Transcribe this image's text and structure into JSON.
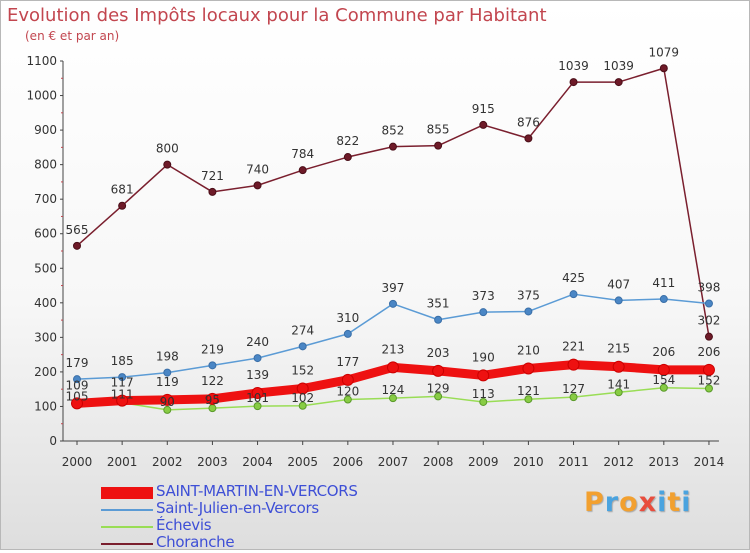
{
  "title": "Evolution des Impôts locaux pour la Commune par Habitant",
  "subtitle": "(en € et par an)",
  "logo": {
    "letters": [
      "P",
      "r",
      "o",
      "x",
      "i",
      "t",
      "i"
    ],
    "colors": [
      "#f2a02f",
      "#4aa3df",
      "#f2a02f",
      "#e84d3d",
      "#4aa3df",
      "#f2a02f",
      "#4aa3df"
    ]
  },
  "chart_data": {
    "type": "line",
    "x": [
      "2000",
      "2001",
      "2002",
      "2003",
      "2004",
      "2005",
      "2006",
      "2007",
      "2008",
      "2009",
      "2010",
      "2011",
      "2012",
      "2013",
      "2014"
    ],
    "ylim": [
      0,
      1100
    ],
    "yticks": [
      "0",
      "100",
      "200",
      "300",
      "400",
      "500",
      "600",
      "700",
      "800",
      "900",
      "1000",
      "1100"
    ],
    "grid": false,
    "legend_position": "bottom-left",
    "series": [
      {
        "name": "SAINT-MARTIN-EN-VERCORS",
        "color": "#ee1111",
        "values": [
          109,
          117,
          119,
          122,
          139,
          152,
          177,
          213,
          203,
          190,
          210,
          221,
          215,
          206,
          206
        ],
        "labels": [
          "109",
          "117",
          "119",
          "122",
          "139",
          "152",
          "177",
          "213",
          "203",
          "190",
          "210",
          "221",
          "215",
          "206",
          "206"
        ]
      },
      {
        "name": "Saint-Julien-en-Vercors",
        "color": "#5b9bd5",
        "values": [
          179,
          185,
          198,
          219,
          240,
          274,
          310,
          397,
          351,
          373,
          375,
          425,
          407,
          411,
          398
        ],
        "labels": [
          "179",
          "185",
          "198",
          "219",
          "240",
          "274",
          "310",
          "397",
          "351",
          "373",
          "375",
          "425",
          "407",
          "411",
          "398"
        ]
      },
      {
        "name": "Échevis",
        "color": "#99dd55",
        "values": [
          105,
          111,
          90,
          95,
          101,
          102,
          120,
          124,
          129,
          113,
          121,
          127,
          141,
          154,
          152
        ],
        "labels": [
          "105",
          "111",
          "90",
          "95",
          "101",
          "102",
          "120",
          "124",
          "129",
          "113",
          "121",
          "127",
          "141",
          "154",
          "152"
        ]
      },
      {
        "name": "Choranche",
        "color": "#7a1f2e",
        "values": [
          565,
          681,
          800,
          721,
          740,
          784,
          822,
          852,
          855,
          915,
          876,
          1039,
          1039,
          1079,
          302
        ],
        "labels": [
          "565",
          "681",
          "800",
          "721",
          "740",
          "784",
          "822",
          "852",
          "855",
          "915",
          "876",
          "1039",
          "1039",
          "1079",
          "302"
        ]
      }
    ]
  }
}
